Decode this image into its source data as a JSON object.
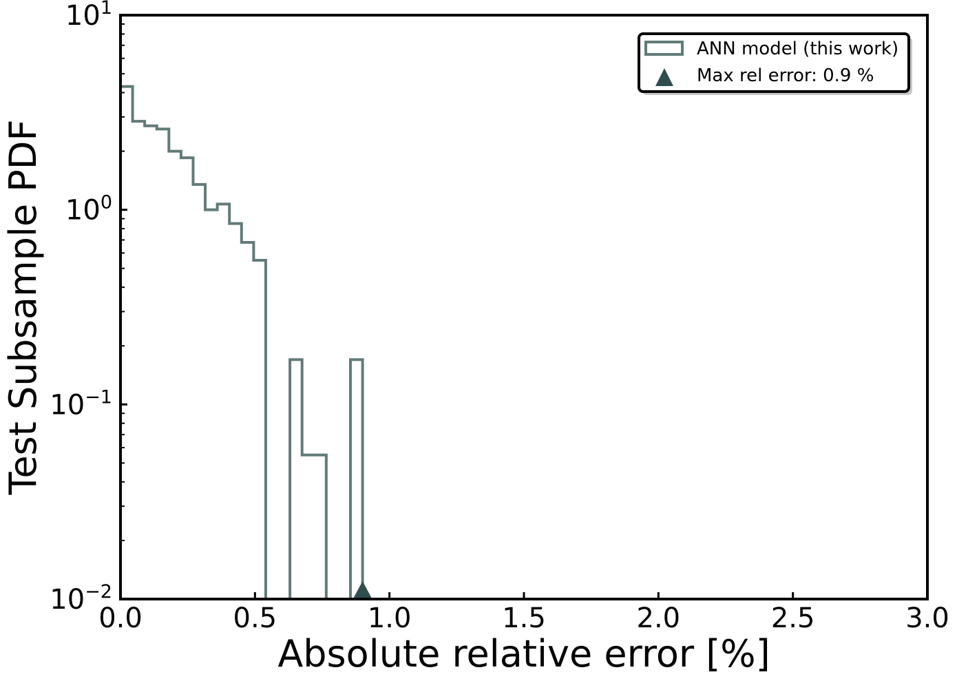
{
  "chart_data": {
    "type": "histogram",
    "xlabel": "Absolute relative error [%]",
    "ylabel": "Test Subsample PDF",
    "xlim": [
      0.0,
      3.0
    ],
    "ylim": [
      0.01,
      10
    ],
    "yscale": "log",
    "grid": false,
    "legend_position": "top-right",
    "xticks": [
      "0.0",
      "0.5",
      "1.0",
      "1.5",
      "2.0",
      "2.5",
      "3.0"
    ],
    "yticks": [
      {
        "base": "10",
        "exp": "1"
      },
      {
        "base": "10",
        "exp": "0"
      },
      {
        "base": "10",
        "exp": "−1"
      },
      {
        "base": "10",
        "exp": "−2"
      }
    ],
    "series": [
      {
        "name": "ANN model (this work)",
        "color": "#617b79",
        "style": "step",
        "bin_edges": [
          0.0,
          0.045,
          0.09,
          0.135,
          0.18,
          0.225,
          0.27,
          0.315,
          0.36,
          0.405,
          0.45,
          0.495,
          0.54,
          0.585,
          0.63,
          0.675,
          0.72,
          0.765,
          0.81,
          0.855,
          0.9
        ],
        "values": [
          4.3,
          2.85,
          2.7,
          2.6,
          2.0,
          1.85,
          1.35,
          1.0,
          1.07,
          0.85,
          0.68,
          0.55,
          0,
          0,
          0.17,
          0.055,
          0.055,
          0,
          0,
          0.17
        ]
      }
    ],
    "markers": [
      {
        "name": "Max rel error: 0.9 %",
        "x": 0.9,
        "y": 0.01,
        "symbol": "triangle",
        "color": "#2f4f4f"
      }
    ]
  }
}
